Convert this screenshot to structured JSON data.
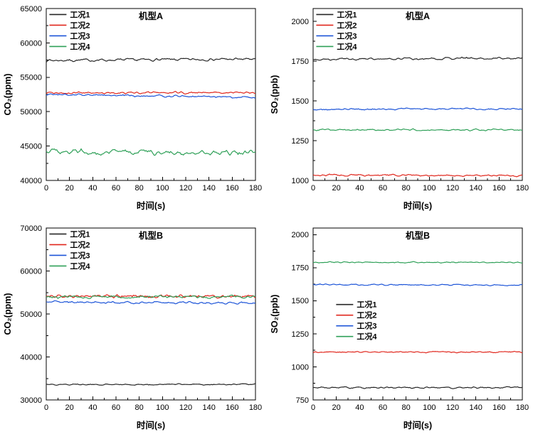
{
  "figure": {
    "background": "#ffffff",
    "axis_color": "#000000"
  },
  "chart_data": [
    {
      "type": "line",
      "title": "机型A",
      "xlabel": "时间(s)",
      "ylabel": "CO₂(ppm)",
      "xlim": [
        0,
        180
      ],
      "xticks": [
        0,
        20,
        40,
        60,
        80,
        100,
        120,
        140,
        160,
        180
      ],
      "x_minor_step": 10,
      "ylim": [
        40000,
        65000
      ],
      "yticks": [
        40000,
        45000,
        50000,
        55000,
        60000,
        65000
      ],
      "y_minor_step": 2500,
      "grid": false,
      "legend": {
        "position": "top-left",
        "x": 0.015,
        "y": 0.01
      },
      "series": [
        {
          "name": "工况1",
          "color": "#262626",
          "mean": 57550,
          "noise": 280,
          "trend": 200
        },
        {
          "name": "工况2",
          "color": "#e0261c",
          "mean": 52750,
          "noise": 230,
          "trend": 80
        },
        {
          "name": "工况3",
          "color": "#1c54d8",
          "mean": 52300,
          "noise": 230,
          "trend": -500
        },
        {
          "name": "工况4",
          "color": "#2fa058",
          "mean": 44100,
          "noise": 550,
          "trend": -150
        }
      ]
    },
    {
      "type": "line",
      "title": "机型A",
      "xlabel": "时间(s)",
      "ylabel": "SO₂(ppb)",
      "xlim": [
        0,
        180
      ],
      "xticks": [
        0,
        20,
        40,
        60,
        80,
        100,
        120,
        140,
        160,
        180
      ],
      "x_minor_step": 10,
      "ylim": [
        1000,
        2080
      ],
      "yticks": [
        1000,
        1250,
        1500,
        1750,
        2000
      ],
      "y_minor_step": 125,
      "grid": false,
      "legend": {
        "position": "top-left",
        "x": 0.015,
        "y": 0.01
      },
      "series": [
        {
          "name": "工况1",
          "color": "#262626",
          "mean": 1765,
          "noise": 10,
          "trend": 6
        },
        {
          "name": "工况2",
          "color": "#e0261c",
          "mean": 1032,
          "noise": 8,
          "trend": -4
        },
        {
          "name": "工况3",
          "color": "#1c54d8",
          "mean": 1448,
          "noise": 8,
          "trend": 5
        },
        {
          "name": "工况4",
          "color": "#2fa058",
          "mean": 1318,
          "noise": 8,
          "trend": 0
        }
      ]
    },
    {
      "type": "line",
      "title": "机型B",
      "xlabel": "时间(s)",
      "ylabel": "CO₂(ppm)",
      "xlim": [
        0,
        180
      ],
      "xticks": [
        0,
        20,
        40,
        60,
        80,
        100,
        120,
        140,
        160,
        180
      ],
      "x_minor_step": 10,
      "ylim": [
        30000,
        70000
      ],
      "yticks": [
        30000,
        40000,
        50000,
        60000,
        70000
      ],
      "y_minor_step": 5000,
      "grid": false,
      "legend": {
        "position": "top-left",
        "x": 0.015,
        "y": 0.01
      },
      "series": [
        {
          "name": "工况1",
          "color": "#262626",
          "mean": 33600,
          "noise": 220,
          "trend": 150
        },
        {
          "name": "工况2",
          "color": "#e0261c",
          "mean": 54100,
          "noise": 600,
          "trend": -100
        },
        {
          "name": "工况3",
          "color": "#1c54d8",
          "mean": 52650,
          "noise": 380,
          "trend": -150
        },
        {
          "name": "工况4",
          "color": "#2fa058",
          "mean": 54000,
          "noise": 500,
          "trend": 100
        }
      ]
    },
    {
      "type": "line",
      "title": "机型B",
      "xlabel": "时间(s)",
      "ylabel": "SO₂(ppb)",
      "xlim": [
        0,
        180
      ],
      "xticks": [
        0,
        20,
        40,
        60,
        80,
        100,
        120,
        140,
        160,
        180
      ],
      "x_minor_step": 10,
      "ylim": [
        750,
        2050
      ],
      "yticks": [
        750,
        1000,
        1250,
        1500,
        1750,
        2000
      ],
      "y_minor_step": 125,
      "grid": false,
      "legend": {
        "position": "mid-left",
        "x": 0.11,
        "y": 0.42
      },
      "series": [
        {
          "name": "工况1",
          "color": "#262626",
          "mean": 843,
          "noise": 9,
          "trend": 0
        },
        {
          "name": "工况2",
          "color": "#e0261c",
          "mean": 1112,
          "noise": 7,
          "trend": 0
        },
        {
          "name": "工况3",
          "color": "#1c54d8",
          "mean": 1620,
          "noise": 7,
          "trend": -5
        },
        {
          "name": "工况4",
          "color": "#2fa058",
          "mean": 1790,
          "noise": 7,
          "trend": 0
        }
      ]
    }
  ]
}
